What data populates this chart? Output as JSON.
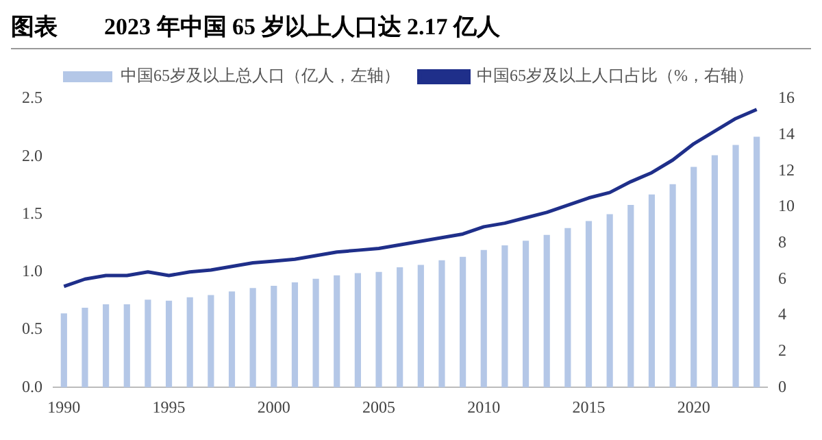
{
  "chart_data": {
    "type": "bar",
    "title": "图表　　2023 年中国 65 岁以上人口达 2.17 亿人",
    "categories": [
      "1990",
      null,
      null,
      null,
      null,
      "1995",
      null,
      null,
      null,
      null,
      "2000",
      null,
      null,
      null,
      null,
      "2005",
      null,
      null,
      null,
      null,
      "2010",
      null,
      null,
      null,
      null,
      "2015",
      null,
      null,
      null,
      null,
      "2020",
      null,
      null,
      null
    ],
    "series": [
      {
        "name": "中国65岁及以上总人口（亿人，左轴）",
        "color": "#b4c7e7",
        "values": [
          0.64,
          0.69,
          0.72,
          0.72,
          0.76,
          0.75,
          0.78,
          0.8,
          0.83,
          0.86,
          0.88,
          0.91,
          0.94,
          0.97,
          0.99,
          1.0,
          1.04,
          1.06,
          1.1,
          1.13,
          1.19,
          1.23,
          1.27,
          1.32,
          1.38,
          1.44,
          1.5,
          1.58,
          1.67,
          1.76,
          1.91,
          2.01,
          2.1,
          2.17
        ]
      },
      {
        "name": "中国65岁及以上人口占比（%，右轴）",
        "type": "line",
        "axis": "y2",
        "color": "#1f2f8a",
        "values": [
          5.6,
          6.0,
          6.2,
          6.2,
          6.4,
          6.2,
          6.4,
          6.5,
          6.7,
          6.9,
          7.0,
          7.1,
          7.3,
          7.5,
          7.6,
          7.7,
          7.9,
          8.1,
          8.3,
          8.5,
          8.9,
          9.1,
          9.4,
          9.7,
          10.1,
          10.5,
          10.8,
          11.4,
          11.9,
          12.6,
          13.5,
          14.2,
          14.9,
          15.4
        ]
      }
    ],
    "ylim": [
      0,
      2.5
    ],
    "yticks": [
      {
        "value": 0,
        "label": "0.0"
      },
      {
        "value": 0.5,
        "label": "0.5"
      },
      {
        "value": 1,
        "label": "1.0"
      },
      {
        "value": 1.5,
        "label": "1.5"
      },
      {
        "value": 2,
        "label": "2.0"
      },
      {
        "value": 2.5,
        "label": "2.5"
      }
    ],
    "y2lim": [
      0,
      16
    ],
    "y2ticks": [
      0,
      2,
      4,
      6,
      8,
      10,
      12,
      14,
      16
    ],
    "grid": false,
    "legend": "top",
    "marker": "none",
    "line_style": "solid"
  }
}
